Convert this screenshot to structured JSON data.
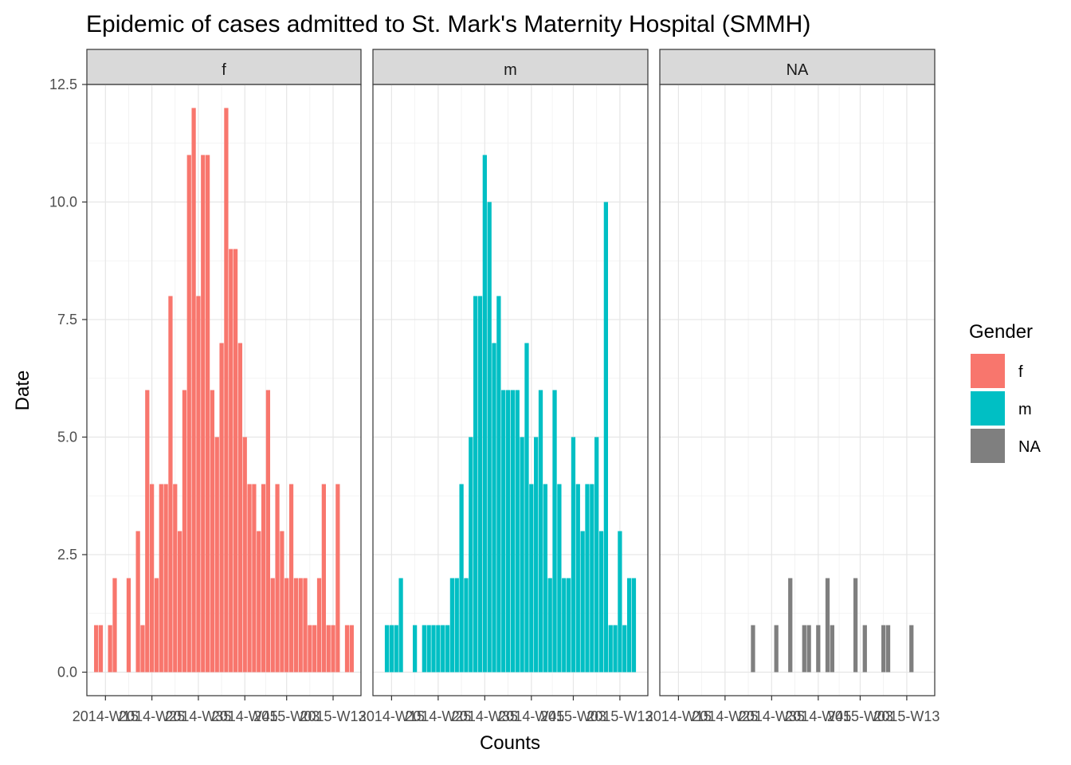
{
  "chart_data": {
    "type": "bar",
    "title": "Epidemic of cases admitted to St. Mark's Maternity Hospital (SMMH)",
    "xlabel": "Counts",
    "ylabel": "Date",
    "ylim": [
      -0.5,
      12.5
    ],
    "yticks": [
      0.0,
      2.5,
      5.0,
      7.5,
      10.0,
      12.5
    ],
    "ytick_labels": [
      "0.0",
      "2.5",
      "5.0",
      "7.5",
      "10.0",
      "12.5"
    ],
    "xtick_labels": [
      "2014-W15",
      "2014-W25",
      "2014-W35",
      "2014-W45",
      "2015-W03",
      "2015-W13"
    ],
    "week_positions_of_xticks": [
      4,
      14,
      24,
      34,
      43,
      53
    ],
    "legend": {
      "title": "Gender",
      "entries": [
        {
          "label": "f",
          "color": "#F8766D"
        },
        {
          "label": "m",
          "color": "#00BFC4"
        },
        {
          "label": "NA",
          "color": "#7F7F7F"
        }
      ]
    },
    "panels": [
      {
        "label": "f",
        "color": "#F8766D",
        "start_week": 2,
        "values": [
          1,
          1,
          0,
          1,
          2,
          0,
          0,
          2,
          0,
          3,
          1,
          6,
          4,
          2,
          4,
          4,
          8,
          4,
          3,
          6,
          11,
          12,
          8,
          11,
          11,
          6,
          5,
          7,
          12,
          9,
          9,
          7,
          5,
          4,
          4,
          3,
          4,
          6,
          2,
          4,
          3,
          2,
          4,
          2,
          2,
          2,
          1,
          1,
          2,
          4,
          1,
          1,
          4,
          0,
          1,
          1
        ]
      },
      {
        "label": "m",
        "color": "#00BFC4",
        "start_week": 3,
        "values": [
          1,
          1,
          1,
          2,
          0,
          0,
          1,
          0,
          1,
          1,
          1,
          1,
          1,
          1,
          2,
          2,
          4,
          2,
          5,
          8,
          8,
          11,
          10,
          7,
          8,
          6,
          6,
          6,
          6,
          5,
          7,
          4,
          5,
          6,
          4,
          2,
          6,
          4,
          2,
          2,
          5,
          4,
          3,
          4,
          4,
          5,
          3,
          10,
          1,
          1,
          3,
          1,
          2,
          2
        ]
      },
      {
        "label": "NA",
        "color": "#7F7F7F",
        "start_week": 20,
        "values": [
          1,
          0,
          0,
          0,
          0,
          1,
          0,
          0,
          2,
          0,
          0,
          1,
          1,
          0,
          1,
          0,
          2,
          1,
          0,
          0,
          0,
          0,
          2,
          0,
          1,
          0,
          0,
          0,
          1,
          1,
          0,
          0,
          0,
          0,
          1
        ]
      }
    ]
  }
}
